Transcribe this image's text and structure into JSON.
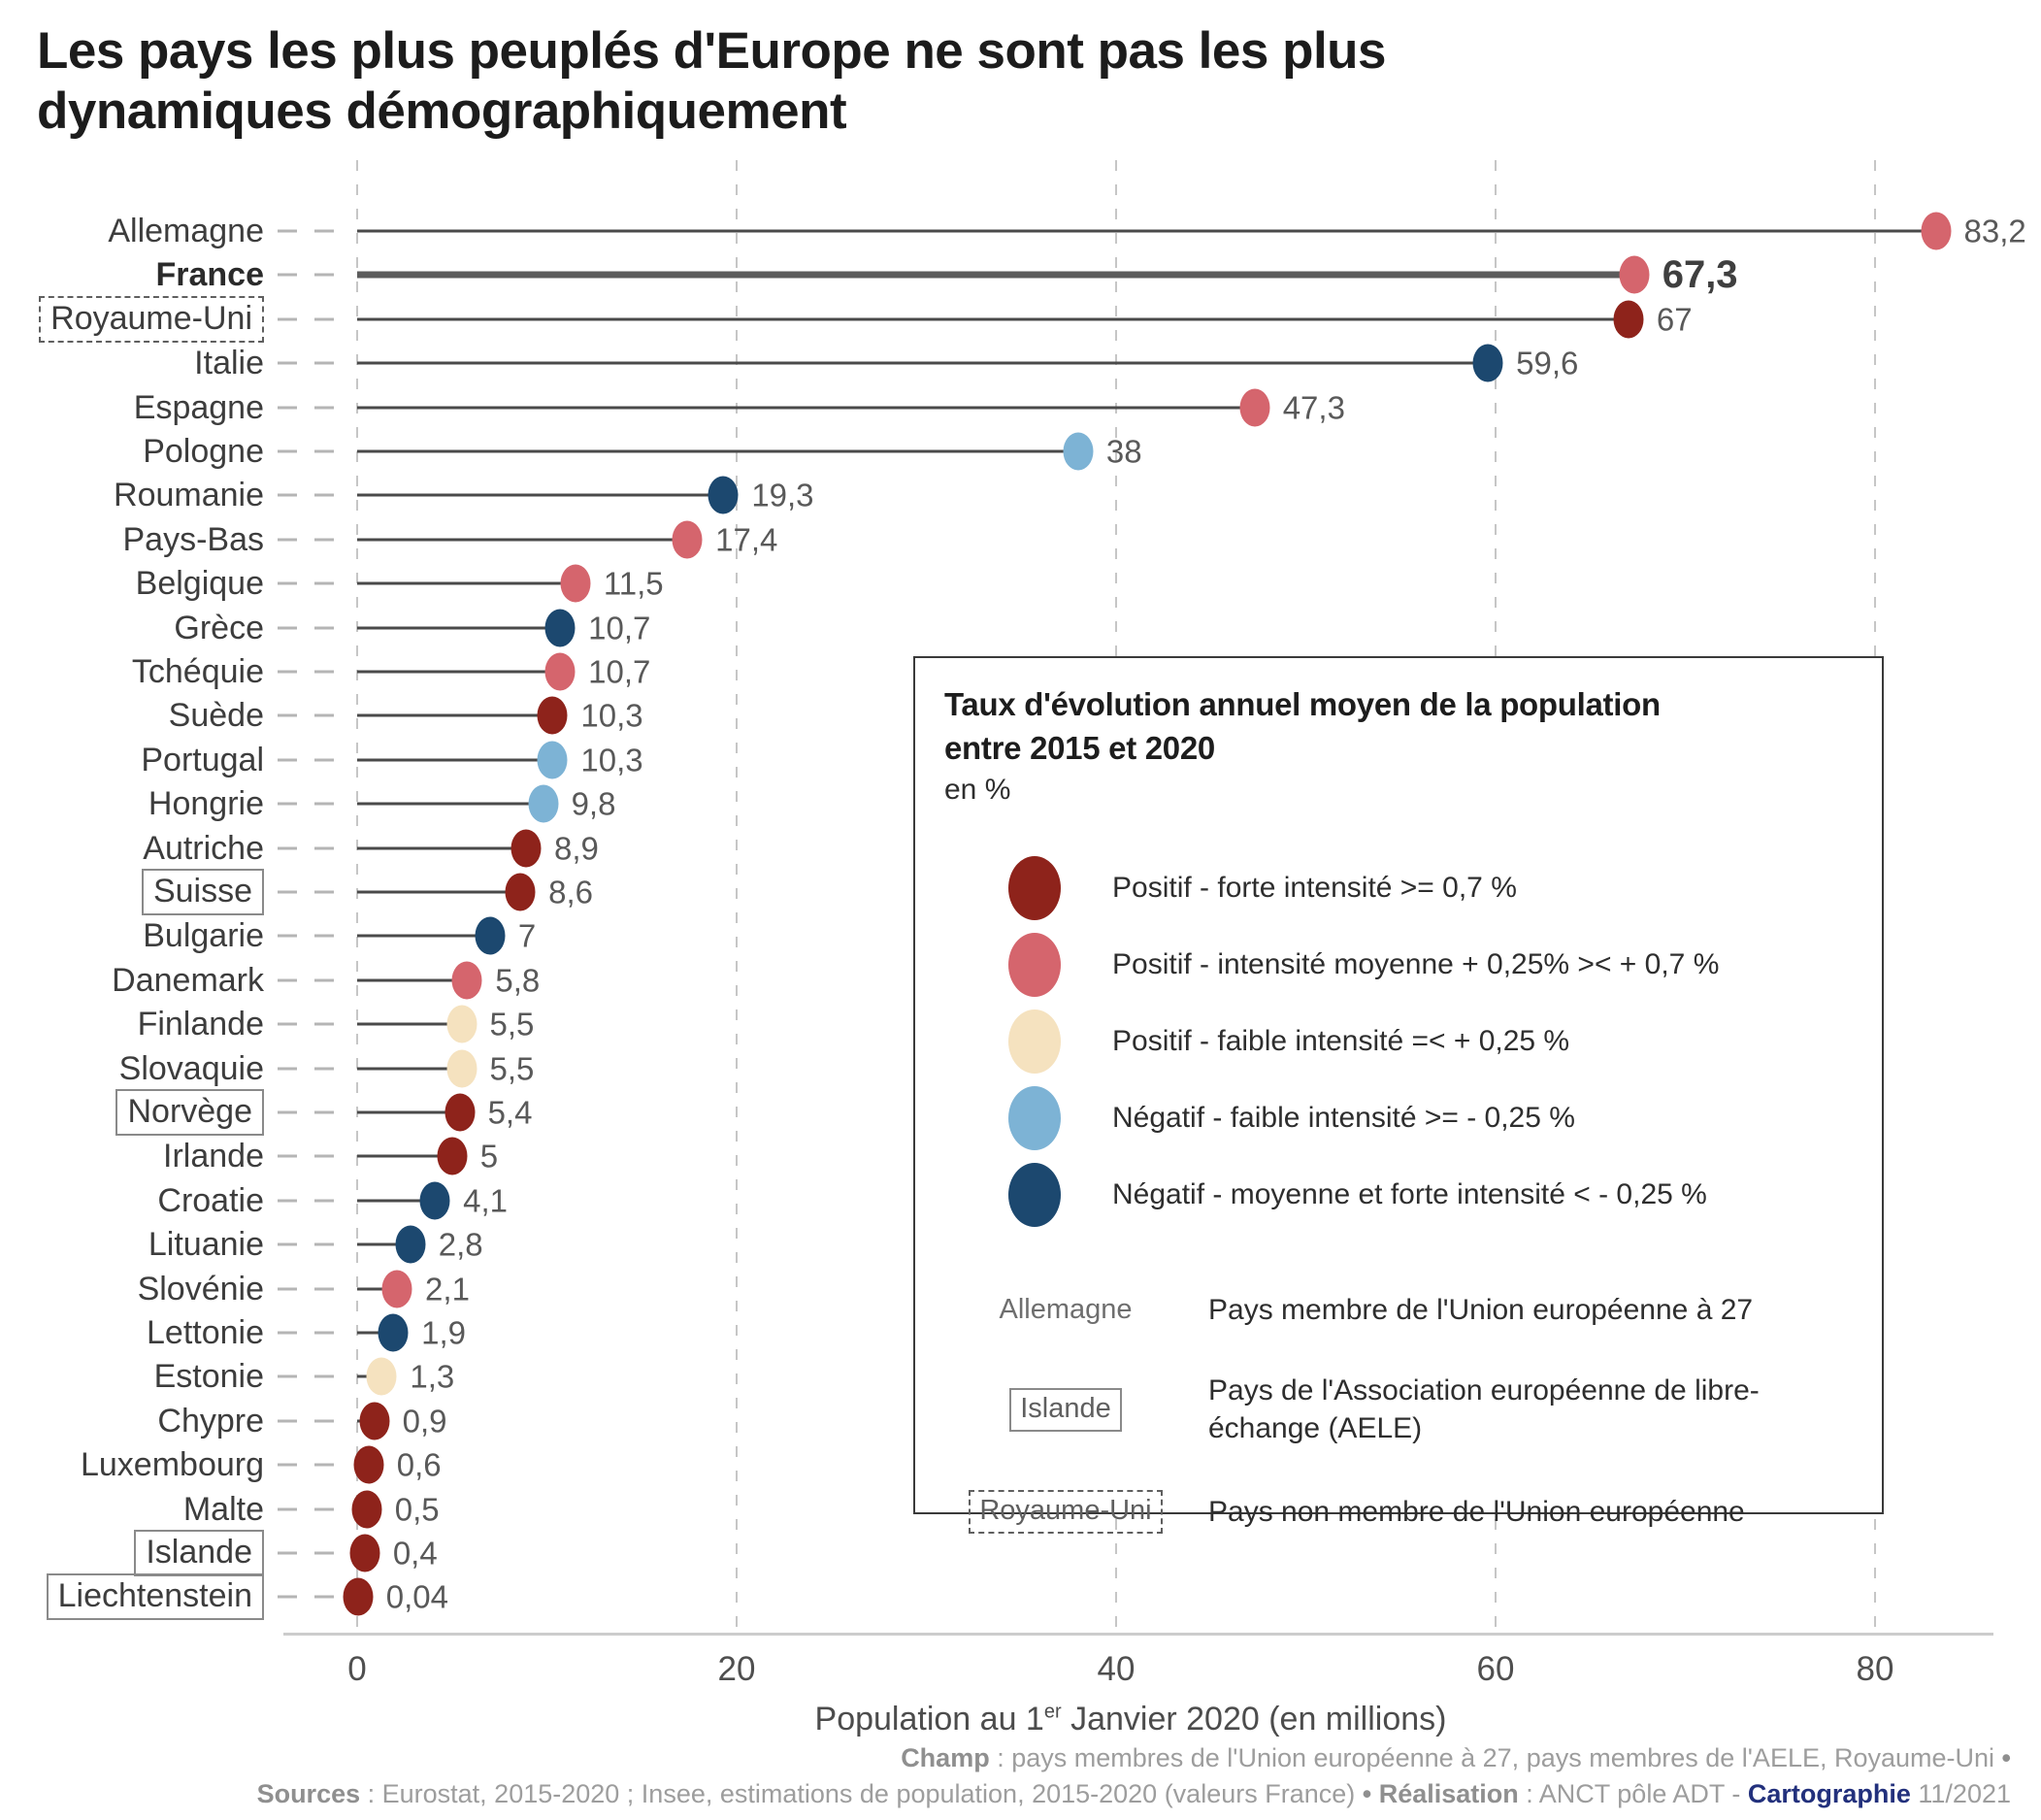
{
  "title": "Les pays les plus peuplés d'Europe ne sont pas les plus dynamiques démographiquement",
  "colors": {
    "pos_forte": "#8e231b",
    "pos_moyenne": "#d5656d",
    "pos_faible": "#f5e2bf",
    "neg_faible": "#7db3d5",
    "neg_forte": "#1c486f",
    "line": "#4a4a4a",
    "highlight_line": "#5c5c5c",
    "cartographie_navy": "#22307c"
  },
  "chart_data": {
    "type": "bar",
    "subtype": "lollipop",
    "title": "Les pays les plus peuplés d'Europe ne sont pas les plus dynamiques démographiquement",
    "xlabel": "Population au 1er Janvier 2020 (en millions)",
    "xlabel_parts": {
      "prefix": "Population au 1",
      "sup": "er",
      "suffix": " Janvier 2020 (en millions)"
    },
    "x_ticks": [
      0,
      20,
      40,
      60,
      80
    ],
    "xlim": [
      0,
      86
    ],
    "grid": "dashed-vertical",
    "legend_position": "center-right box",
    "rate_categories_meaning": "Taux d'évolution annuel moyen de la population entre 2015 et 2020 (en %)",
    "countries": [
      {
        "name": "Allemagne",
        "value": 83.2,
        "label": "83,2",
        "rate": "pos_moyenne",
        "box": "none",
        "highlight": false
      },
      {
        "name": "France",
        "value": 67.3,
        "label": "67,3",
        "rate": "pos_moyenne",
        "box": "none",
        "highlight": true
      },
      {
        "name": "Royaume-Uni",
        "value": 67,
        "label": "67",
        "rate": "pos_forte",
        "box": "dashed",
        "highlight": false
      },
      {
        "name": "Italie",
        "value": 59.6,
        "label": "59,6",
        "rate": "neg_forte",
        "box": "none",
        "highlight": false
      },
      {
        "name": "Espagne",
        "value": 47.3,
        "label": "47,3",
        "rate": "pos_moyenne",
        "box": "none",
        "highlight": false
      },
      {
        "name": "Pologne",
        "value": 38,
        "label": "38",
        "rate": "neg_faible",
        "box": "none",
        "highlight": false
      },
      {
        "name": "Roumanie",
        "value": 19.3,
        "label": "19,3",
        "rate": "neg_forte",
        "box": "none",
        "highlight": false
      },
      {
        "name": "Pays-Bas",
        "value": 17.4,
        "label": "17,4",
        "rate": "pos_moyenne",
        "box": "none",
        "highlight": false
      },
      {
        "name": "Belgique",
        "value": 11.5,
        "label": "11,5",
        "rate": "pos_moyenne",
        "box": "none",
        "highlight": false
      },
      {
        "name": "Grèce",
        "value": 10.7,
        "label": "10,7",
        "rate": "neg_forte",
        "box": "none",
        "highlight": false
      },
      {
        "name": "Tchéquie",
        "value": 10.7,
        "label": "10,7",
        "rate": "pos_moyenne",
        "box": "none",
        "highlight": false
      },
      {
        "name": "Suède",
        "value": 10.3,
        "label": "10,3",
        "rate": "pos_forte",
        "box": "none",
        "highlight": false
      },
      {
        "name": "Portugal",
        "value": 10.3,
        "label": "10,3",
        "rate": "neg_faible",
        "box": "none",
        "highlight": false
      },
      {
        "name": "Hongrie",
        "value": 9.8,
        "label": "9,8",
        "rate": "neg_faible",
        "box": "none",
        "highlight": false
      },
      {
        "name": "Autriche",
        "value": 8.9,
        "label": "8,9",
        "rate": "pos_forte",
        "box": "none",
        "highlight": false
      },
      {
        "name": "Suisse",
        "value": 8.6,
        "label": "8,6",
        "rate": "pos_forte",
        "box": "solid",
        "highlight": false
      },
      {
        "name": "Bulgarie",
        "value": 7,
        "label": "7",
        "rate": "neg_forte",
        "box": "none",
        "highlight": false
      },
      {
        "name": "Danemark",
        "value": 5.8,
        "label": "5,8",
        "rate": "pos_moyenne",
        "box": "none",
        "highlight": false
      },
      {
        "name": "Finlande",
        "value": 5.5,
        "label": "5,5",
        "rate": "pos_faible",
        "box": "none",
        "highlight": false
      },
      {
        "name": "Slovaquie",
        "value": 5.5,
        "label": "5,5",
        "rate": "pos_faible",
        "box": "none",
        "highlight": false
      },
      {
        "name": "Norvège",
        "value": 5.4,
        "label": "5,4",
        "rate": "pos_forte",
        "box": "solid",
        "highlight": false
      },
      {
        "name": "Irlande",
        "value": 5,
        "label": "5",
        "rate": "pos_forte",
        "box": "none",
        "highlight": false
      },
      {
        "name": "Croatie",
        "value": 4.1,
        "label": "4,1",
        "rate": "neg_forte",
        "box": "none",
        "highlight": false
      },
      {
        "name": "Lituanie",
        "value": 2.8,
        "label": "2,8",
        "rate": "neg_forte",
        "box": "none",
        "highlight": false
      },
      {
        "name": "Slovénie",
        "value": 2.1,
        "label": "2,1",
        "rate": "pos_moyenne",
        "box": "none",
        "highlight": false
      },
      {
        "name": "Lettonie",
        "value": 1.9,
        "label": "1,9",
        "rate": "neg_forte",
        "box": "none",
        "highlight": false
      },
      {
        "name": "Estonie",
        "value": 1.3,
        "label": "1,3",
        "rate": "pos_faible",
        "box": "none",
        "highlight": false
      },
      {
        "name": "Chypre",
        "value": 0.9,
        "label": "0,9",
        "rate": "pos_forte",
        "box": "none",
        "highlight": false
      },
      {
        "name": "Luxembourg",
        "value": 0.6,
        "label": "0,6",
        "rate": "pos_forte",
        "box": "none",
        "highlight": false
      },
      {
        "name": "Malte",
        "value": 0.5,
        "label": "0,5",
        "rate": "pos_forte",
        "box": "none",
        "highlight": false
      },
      {
        "name": "Islande",
        "value": 0.4,
        "label": "0,4",
        "rate": "pos_forte",
        "box": "solid",
        "highlight": false
      },
      {
        "name": "Liechtenstein",
        "value": 0.04,
        "label": "0,04",
        "rate": "pos_forte",
        "box": "solid",
        "highlight": false
      }
    ]
  },
  "legend": {
    "title_line1": "Taux d'évolution annuel moyen de la population",
    "title_line2": "entre 2015 et 2020",
    "unit": "en %",
    "items": [
      {
        "rate": "pos_forte",
        "label": "Positif - forte intensité >= 0,7 %"
      },
      {
        "rate": "pos_moyenne",
        "label": "Positif - intensité moyenne + 0,25% >< + 0,7 %"
      },
      {
        "rate": "pos_faible",
        "label": "Positif - faible intensité =< + 0,25 %"
      },
      {
        "rate": "neg_faible",
        "label": "Négatif - faible intensité >= - 0,25 %"
      },
      {
        "rate": "neg_forte",
        "label": "Négatif - moyenne et forte intensité < - 0,25 %"
      }
    ],
    "membership": [
      {
        "sample": "Allemagne",
        "box": "none",
        "label": "Pays membre de l'Union européenne à 27"
      },
      {
        "sample": "Islande",
        "box": "solid",
        "label": "Pays de l'Association européenne de libre-échange (AELE)"
      },
      {
        "sample": "Royaume-Uni",
        "box": "dashed",
        "label": "Pays non membre de l'Union européenne"
      }
    ]
  },
  "footer": {
    "line1": [
      {
        "t": "Champ",
        "b": true
      },
      {
        "t": " : pays membres de l'Union européenne à 27, pays membres de l'AELE, Royaume-Uni "
      },
      {
        "t": "•",
        "b": true
      }
    ],
    "line2": [
      {
        "t": "Sources",
        "b": true
      },
      {
        "t": " : Eurostat, 2015-2020 ; Insee, estimations de population, 2015-2020 (valeurs France) "
      },
      {
        "t": "•",
        "b": true
      },
      {
        "t": " "
      },
      {
        "t": "Réalisation",
        "b": true
      },
      {
        "t": " : ANCT pôle ADT - "
      },
      {
        "t": "Cartographie",
        "b": true,
        "navy": true
      },
      {
        "t": " 11/2021"
      }
    ]
  }
}
